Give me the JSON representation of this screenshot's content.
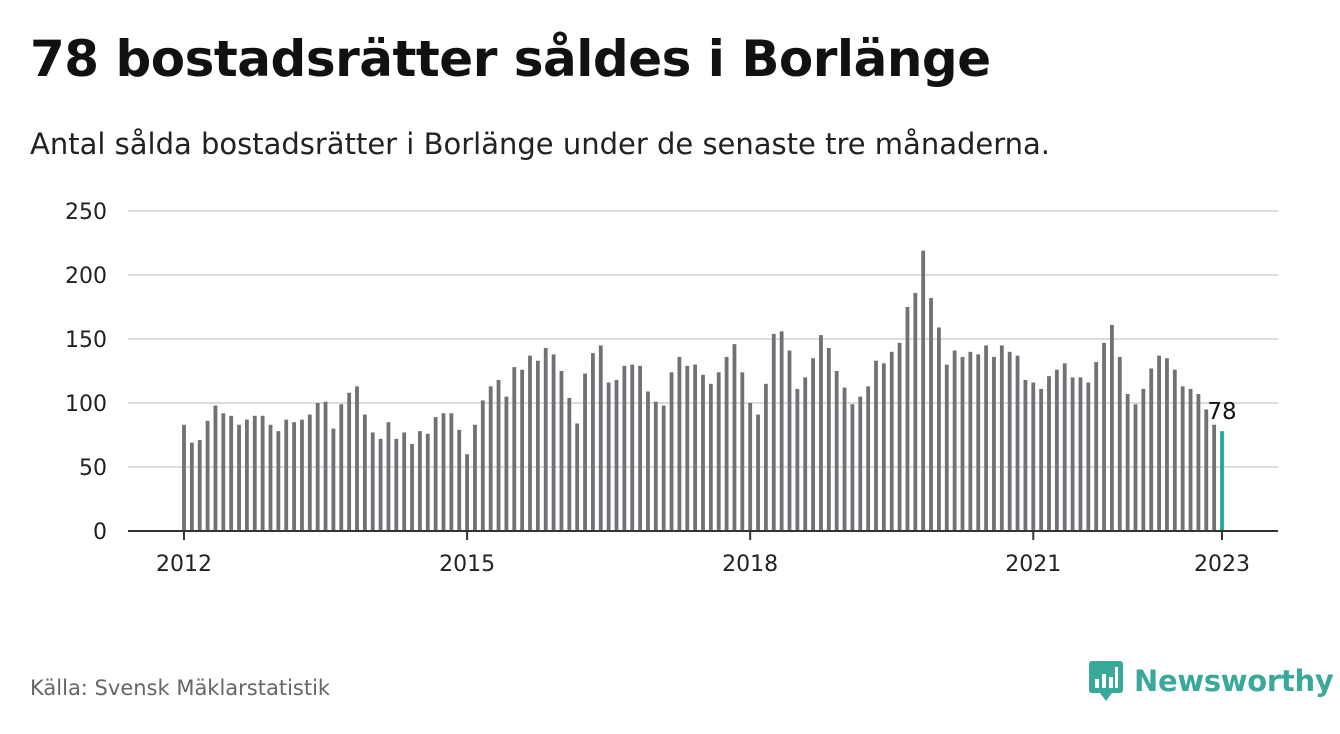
{
  "title": "78 bostadsrätter såldes i Borlänge",
  "subtitle": "Antal sålda bostadsrätter i Borlänge under de senaste tre månaderna.",
  "source": "Källa: Svensk Mäklarstatistik",
  "brand": {
    "name": "Newsworthy",
    "icon": "newsworthy-logo-icon"
  },
  "colors": {
    "bar": "#707075",
    "highlight": "#23a895",
    "grid": "#dcdcdc",
    "axis": "#333333",
    "brand": "#3aa89a"
  },
  "chart_data": {
    "type": "bar",
    "title": "",
    "xlabel": "",
    "ylabel": "",
    "ylim": [
      0,
      250
    ],
    "yticks": [
      0,
      50,
      100,
      150,
      200,
      250
    ],
    "xticks": [
      "2012",
      "2015",
      "2018",
      "2021",
      "2023"
    ],
    "grid": true,
    "start": "2012-01",
    "end": "2023-01",
    "highlight_last": true,
    "annotation": "78",
    "values": [
      83,
      69,
      71,
      86,
      98,
      92,
      90,
      83,
      87,
      90,
      90,
      83,
      78,
      87,
      85,
      87,
      91,
      100,
      101,
      80,
      99,
      108,
      113,
      91,
      77,
      72,
      85,
      72,
      77,
      68,
      78,
      76,
      89,
      92,
      92,
      79,
      60,
      83,
      102,
      113,
      118,
      105,
      128,
      126,
      137,
      133,
      143,
      138,
      125,
      104,
      84,
      123,
      139,
      145,
      116,
      118,
      129,
      130,
      129,
      109,
      101,
      98,
      124,
      136,
      129,
      130,
      122,
      115,
      124,
      136,
      146,
      124,
      100,
      91,
      115,
      154,
      156,
      141,
      111,
      120,
      135,
      153,
      143,
      125,
      112,
      99,
      105,
      113,
      133,
      131,
      140,
      147,
      175,
      186,
      219,
      182,
      159,
      130,
      141,
      136,
      140,
      138,
      145,
      136,
      145,
      140,
      137,
      118,
      116,
      111,
      121,
      126,
      131,
      120,
      120,
      116,
      132,
      147,
      161,
      136,
      107,
      99,
      111,
      127,
      137,
      135,
      126,
      113,
      111,
      107,
      95,
      83,
      78
    ]
  }
}
